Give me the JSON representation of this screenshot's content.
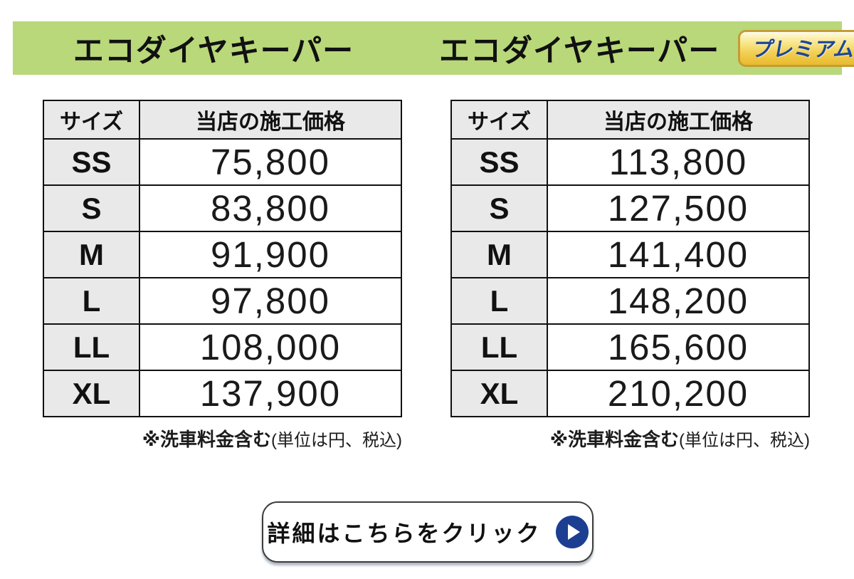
{
  "header": {
    "band_color": "#b9d87a",
    "left_title": "エコダイヤキーパー",
    "right_title": "エコダイヤキーパー",
    "premium_badge": {
      "label": "プレミアム",
      "text_color": "#1d4796",
      "gold_top": "#fffbe0",
      "gold_bottom": "#e9ba2e",
      "border_color": "#c59d33"
    }
  },
  "tables": [
    {
      "title": "エコダイヤキーパー",
      "columns": [
        "サイズ",
        "当店の施工価格"
      ],
      "rows": [
        [
          "SS",
          "75,800"
        ],
        [
          "S",
          "83,800"
        ],
        [
          "M",
          "91,900"
        ],
        [
          "L",
          "97,800"
        ],
        [
          "LL",
          "108,000"
        ],
        [
          "XL",
          "137,900"
        ]
      ],
      "note_bold": "※洗車料金含む",
      "note_regular": "(単位は円、税込)"
    },
    {
      "title": "エコダイヤキーパー プレミアム",
      "columns": [
        "サイズ",
        "当店の施工価格"
      ],
      "rows": [
        [
          "SS",
          "113,800"
        ],
        [
          "S",
          "127,500"
        ],
        [
          "M",
          "141,400"
        ],
        [
          "L",
          "148,200"
        ],
        [
          "LL",
          "165,600"
        ],
        [
          "XL",
          "210,200"
        ]
      ],
      "note_bold": "※洗車料金含む",
      "note_regular": "(単位は円、税込)"
    }
  ],
  "cta_button": {
    "label": "詳細はこちらをクリック",
    "icon": "play-circle-icon",
    "circle_color": "#1c3f92"
  },
  "colors": {
    "header_cell_bg": "#e9e9e9",
    "table_border": "#111111",
    "page_bg": "#ffffff"
  }
}
